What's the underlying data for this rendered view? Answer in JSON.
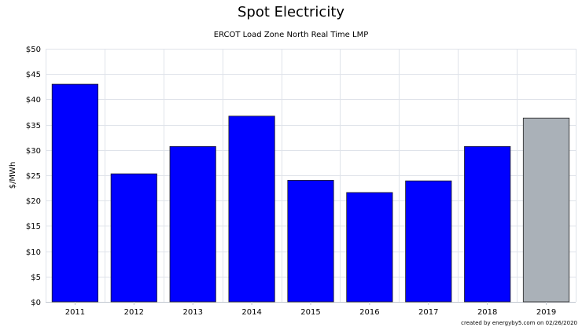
{
  "chart_data": {
    "type": "bar",
    "title": "Spot Electricity",
    "subtitle": "ERCOT Load Zone North Real Time LMP",
    "xlabel": "",
    "ylabel": "$/MWh",
    "categories": [
      "2011",
      "2012",
      "2013",
      "2014",
      "2015",
      "2016",
      "2017",
      "2018",
      "2019"
    ],
    "values": [
      43.0,
      25.3,
      30.7,
      36.7,
      24.0,
      21.6,
      23.9,
      30.7,
      36.3
    ],
    "bar_colors": [
      "#0000ff",
      "#0000ff",
      "#0000ff",
      "#0000ff",
      "#0000ff",
      "#0000ff",
      "#0000ff",
      "#0000ff",
      "#aab1b8"
    ],
    "ylim": [
      0,
      50
    ],
    "yticks": [
      0,
      5,
      10,
      15,
      20,
      25,
      30,
      35,
      40,
      45,
      50
    ],
    "ytick_labels": [
      "$0",
      "$5",
      "$10",
      "$15",
      "$20",
      "$25",
      "$30",
      "$35",
      "$40",
      "$45",
      "$50"
    ],
    "grid": true,
    "credits": "created by energyby5.com on 02/26/2020"
  }
}
